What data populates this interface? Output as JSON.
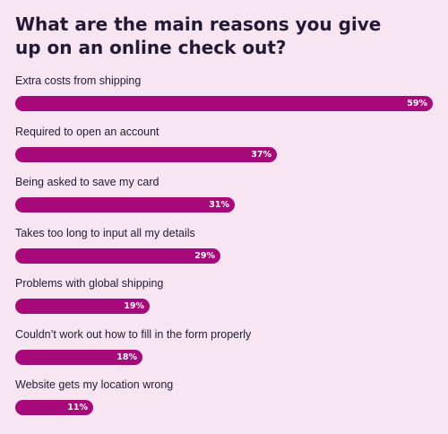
{
  "chart_data": {
    "type": "bar",
    "orientation": "horizontal",
    "title": "What are the main reasons you give up on an online check out?",
    "categories": [
      "Extra costs from shipping",
      "Required to open an account",
      "Being asked to save my card",
      "Takes too long to input all my details",
      "Problems with global shipping",
      "Couldn’t work out how to fill in the form properly",
      "Website gets my location wrong"
    ],
    "values": [
      59,
      37,
      31,
      29,
      19,
      18,
      11
    ],
    "value_labels": [
      "59%",
      "37%",
      "31%",
      "29%",
      "19%",
      "18%",
      "11%"
    ],
    "unit": "%",
    "xlim": [
      0,
      59
    ],
    "grid": false,
    "legend": "none",
    "colors": {
      "bar": "#a8097a",
      "background": "#f7e6f1",
      "text": "#231a37",
      "value_text": "#ffffff"
    }
  }
}
